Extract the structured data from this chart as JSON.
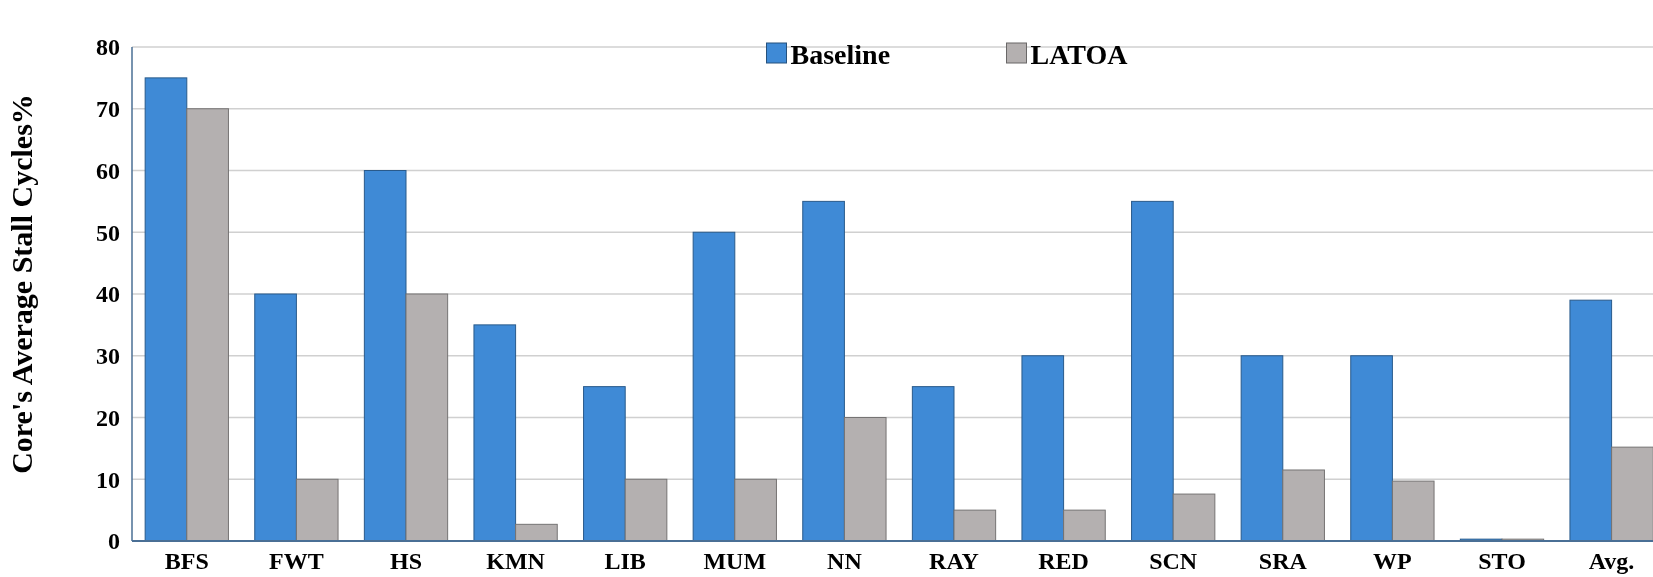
{
  "chart_data": {
    "type": "bar",
    "ylabel": "Core's Average Stall Cycles%",
    "categories": [
      "BFS",
      "FWT",
      "HS",
      "KMN",
      "LIB",
      "MUM",
      "NN",
      "RAY",
      "RED",
      "SCN",
      "SRA",
      "WP",
      "STO",
      "Avg."
    ],
    "series": [
      {
        "name": "Baseline",
        "color": "#3f8ad6",
        "values": [
          75,
          40,
          60,
          35,
          25,
          50,
          55,
          25,
          30,
          55,
          30,
          30,
          0.3,
          39
        ]
      },
      {
        "name": "LATOA",
        "color": "#b4b0b0",
        "values": [
          70,
          10,
          40,
          2.7,
          10,
          10,
          20,
          5,
          5,
          7.6,
          11.5,
          9.7,
          0.3,
          15.2
        ]
      }
    ],
    "ylim": [
      0,
      80
    ],
    "yticks": [
      0,
      10,
      20,
      30,
      40,
      50,
      60,
      70,
      80
    ],
    "grid": "y",
    "legend": "top"
  }
}
